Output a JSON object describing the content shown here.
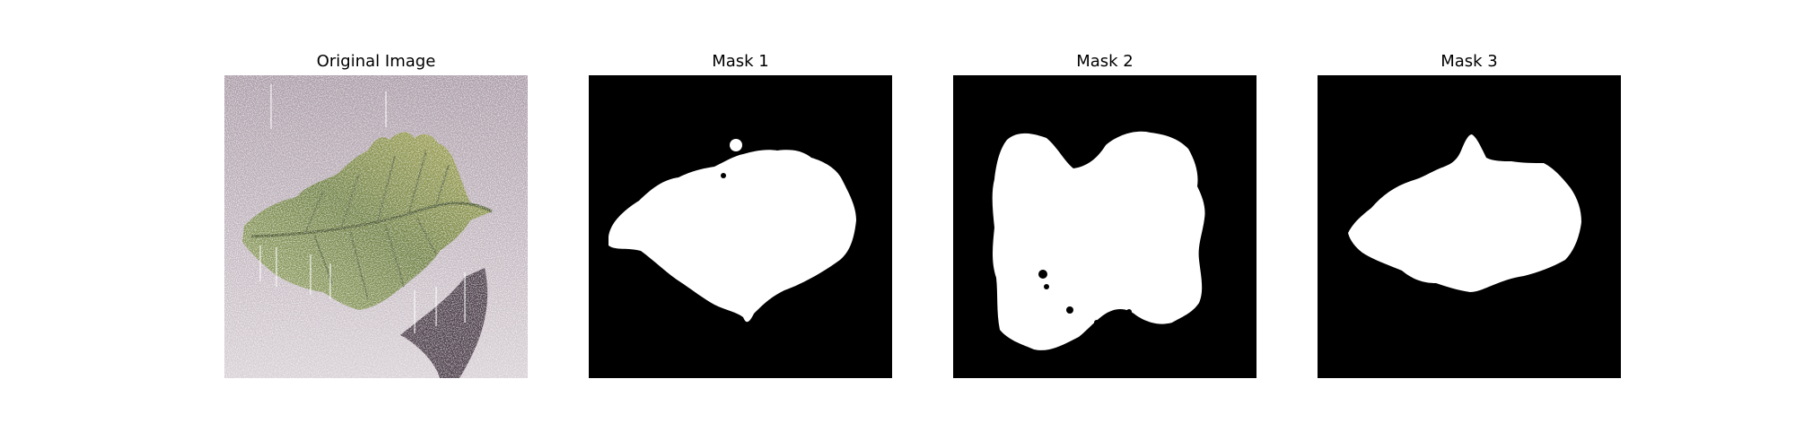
{
  "panels": [
    {
      "title": "Original Image",
      "content": "leaf-photo",
      "colors": {
        "background": "#b9aab4",
        "leaf": "#7f8f52",
        "shadow": "#4a3d48"
      }
    },
    {
      "title": "Mask 1",
      "content": "binary-mask",
      "colors": {
        "background": "#000000",
        "foreground": "#ffffff"
      }
    },
    {
      "title": "Mask 2",
      "content": "binary-mask",
      "colors": {
        "background": "#000000",
        "foreground": "#ffffff"
      }
    },
    {
      "title": "Mask 3",
      "content": "binary-mask",
      "colors": {
        "background": "#000000",
        "foreground": "#ffffff"
      }
    }
  ]
}
